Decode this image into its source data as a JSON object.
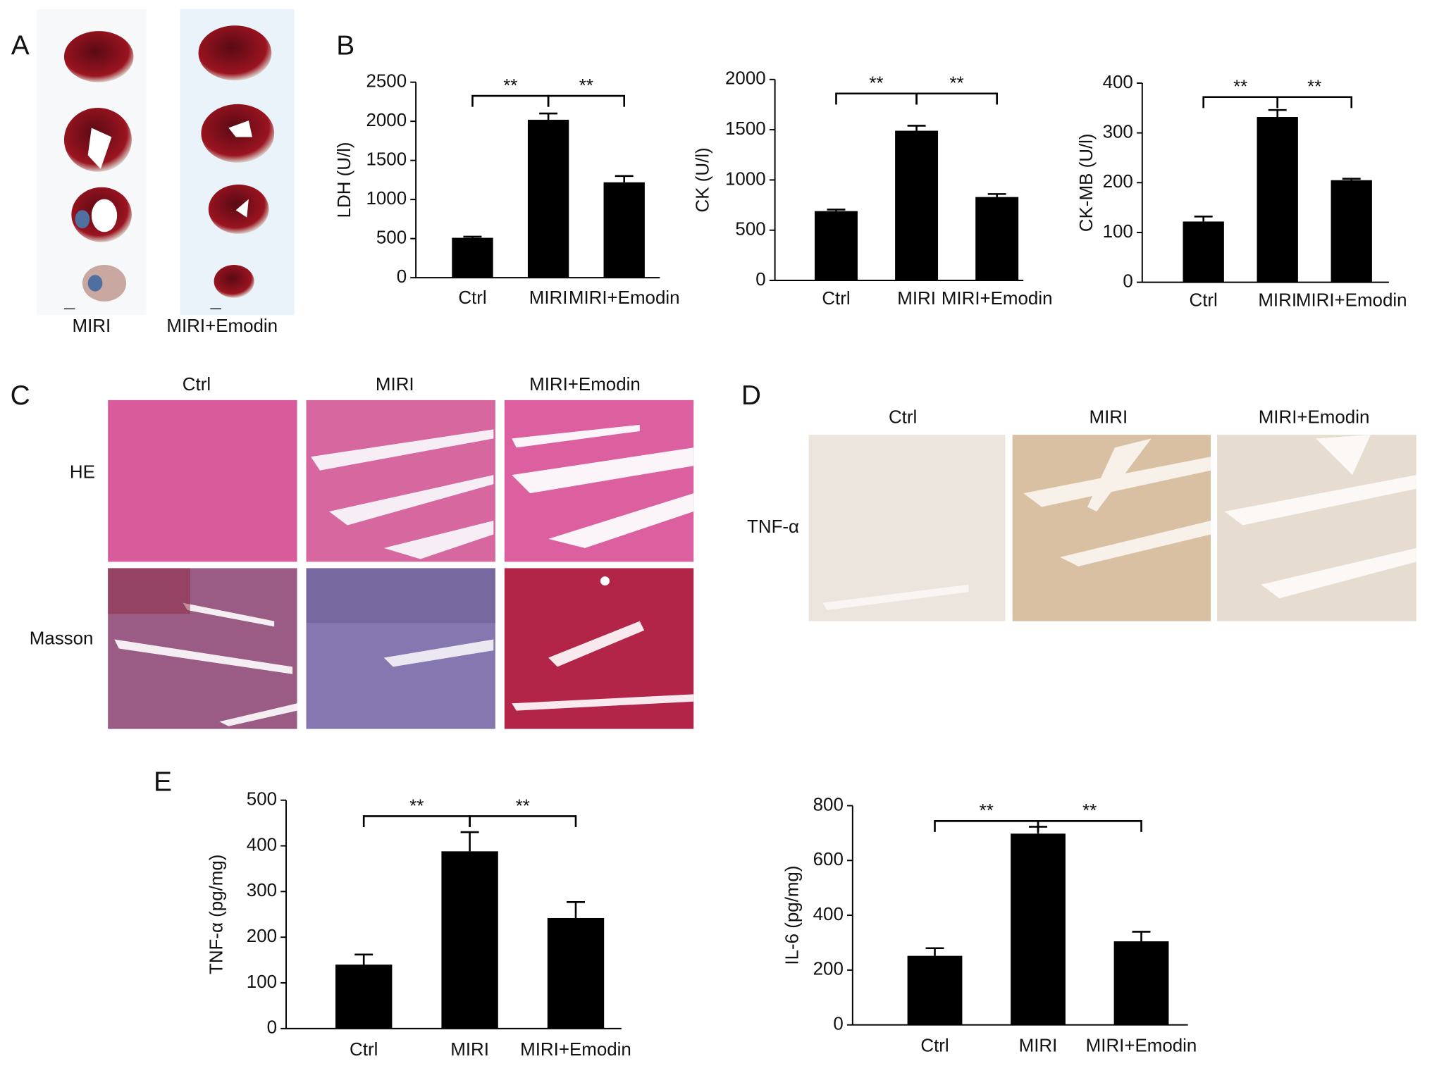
{
  "panels": {
    "A": {
      "label": "A",
      "groups": [
        "MIRI",
        "MIRI+Emodin"
      ]
    },
    "B": {
      "label": "B"
    },
    "C": {
      "label": "C",
      "columns": [
        "Ctrl",
        "MIRI",
        "MIRI+Emodin"
      ],
      "rows": [
        "HE",
        "Masson"
      ]
    },
    "D": {
      "label": "D",
      "columns": [
        "Ctrl",
        "MIRI",
        "MIRI+Emodin"
      ],
      "rows": [
        "TNF-α"
      ]
    },
    "E": {
      "label": "E"
    }
  },
  "chart_data": [
    {
      "type": "bar",
      "y_label": "LDH (U/l)",
      "categories": [
        "Ctrl",
        "MIRI",
        "MIRI+Emodin"
      ],
      "values": [
        510,
        2020,
        1220
      ],
      "errors": [
        15,
        80,
        80
      ],
      "color": "#000000",
      "ylim": [
        0,
        2500
      ],
      "yticks": [
        0,
        500,
        1000,
        1500,
        2000,
        2500
      ],
      "annotations": [
        "**",
        "**"
      ]
    },
    {
      "type": "bar",
      "y_label": "CK (U/l)",
      "categories": [
        "Ctrl",
        "MIRI",
        "MIRI+Emodin"
      ],
      "values": [
        690,
        1490,
        830
      ],
      "errors": [
        15,
        50,
        30
      ],
      "color": "#000000",
      "ylim": [
        0,
        2000
      ],
      "yticks": [
        0,
        500,
        1000,
        1500,
        2000
      ],
      "annotations": [
        "**",
        "**"
      ]
    },
    {
      "type": "bar",
      "y_label": "CK-MB (U/l)",
      "categories": [
        "Ctrl",
        "MIRI",
        "MIRI+Emodin"
      ],
      "values": [
        122,
        332,
        205
      ],
      "errors": [
        10,
        14,
        3
      ],
      "color": "#000000",
      "ylim": [
        0,
        400
      ],
      "yticks": [
        0,
        100,
        200,
        300,
        400
      ],
      "annotations": [
        "**",
        "**"
      ]
    },
    {
      "type": "bar",
      "y_label": "TNF-α (pg/mg)",
      "categories": [
        "Ctrl",
        "MIRI",
        "MIRI+Emodin"
      ],
      "values": [
        140,
        388,
        242
      ],
      "errors": [
        22,
        42,
        35
      ],
      "color": "#000000",
      "ylim": [
        0,
        500
      ],
      "yticks": [
        0,
        100,
        200,
        300,
        400,
        500
      ],
      "annotations": [
        "**",
        "**"
      ]
    },
    {
      "type": "bar",
      "y_label": "IL-6 (pg/mg)",
      "categories": [
        "Ctrl",
        "MIRI",
        "MIRI+Emodin"
      ],
      "values": [
        252,
        698,
        305
      ],
      "errors": [
        28,
        25,
        35
      ],
      "color": "#000000",
      "ylim": [
        0,
        800
      ],
      "yticks": [
        0,
        200,
        400,
        600,
        800
      ],
      "annotations": [
        "**",
        "**"
      ]
    }
  ]
}
